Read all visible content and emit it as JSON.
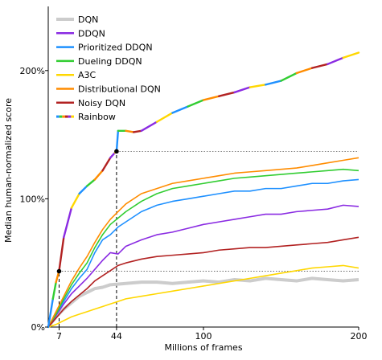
{
  "chart_data": {
    "type": "line",
    "xlabel": "Millions of frames",
    "ylabel": "Median human-normalized score",
    "xlim": [
      0,
      200
    ],
    "ylim": [
      0,
      250
    ],
    "x_ticks": [
      7,
      44,
      100,
      200
    ],
    "y_ticks": [
      {
        "value": 0,
        "label": "0%"
      },
      {
        "value": 100,
        "label": "100%"
      },
      {
        "value": 200,
        "label": "200%"
      }
    ],
    "legend_position": "top-left",
    "reference_lines": [
      {
        "type": "horizontal",
        "y": 137,
        "x_from": 44,
        "x_to": 200,
        "style": "dotted"
      },
      {
        "type": "horizontal",
        "y": 43.5,
        "x_from": 7,
        "x_to": 200,
        "style": "dotted"
      },
      {
        "type": "vertical",
        "x": 7,
        "y_from": 0,
        "y_to": 43.5,
        "style": "dashed"
      },
      {
        "type": "vertical",
        "x": 44,
        "y_from": 0,
        "y_to": 137,
        "style": "dashed"
      }
    ],
    "markers": [
      {
        "x": 7,
        "y": 43.5
      },
      {
        "x": 44,
        "y": 137
      }
    ],
    "series": [
      {
        "name": "DQN",
        "color": "#cccccc",
        "width": 4,
        "x": [
          0,
          5,
          10,
          15,
          20,
          25,
          30,
          35,
          40,
          50,
          60,
          70,
          80,
          90,
          100,
          110,
          120,
          130,
          140,
          150,
          160,
          170,
          180,
          190,
          200
        ],
        "y": [
          0,
          8,
          14,
          19,
          24,
          27,
          30,
          31,
          33,
          34,
          35,
          35,
          34,
          35,
          36,
          35,
          37,
          36,
          38,
          37,
          36,
          38,
          37,
          36,
          37
        ]
      },
      {
        "name": "DDQN",
        "color": "#8a2be2",
        "width": 1.6,
        "x": [
          0,
          5,
          10,
          15,
          20,
          25,
          30,
          35,
          40,
          45,
          50,
          60,
          70,
          80,
          90,
          100,
          110,
          120,
          130,
          140,
          150,
          160,
          170,
          180,
          190,
          200
        ],
        "y": [
          0,
          9,
          18,
          26,
          32,
          38,
          45,
          52,
          58,
          57,
          63,
          68,
          72,
          74,
          77,
          80,
          82,
          84,
          86,
          88,
          88,
          90,
          91,
          92,
          95,
          94
        ]
      },
      {
        "name": "Prioritized DDQN",
        "color": "#1e90ff",
        "width": 1.6,
        "x": [
          0,
          5,
          10,
          15,
          20,
          25,
          30,
          35,
          40,
          45,
          50,
          60,
          70,
          80,
          90,
          100,
          110,
          120,
          130,
          140,
          150,
          160,
          170,
          180,
          190,
          200
        ],
        "y": [
          0,
          10,
          20,
          30,
          38,
          45,
          58,
          68,
          72,
          78,
          82,
          90,
          95,
          98,
          100,
          102,
          104,
          106,
          106,
          108,
          108,
          110,
          112,
          112,
          114,
          115
        ]
      },
      {
        "name": "Dueling DDQN",
        "color": "#32cd32",
        "width": 1.6,
        "x": [
          0,
          5,
          10,
          15,
          20,
          25,
          30,
          35,
          40,
          45,
          50,
          60,
          70,
          80,
          90,
          100,
          110,
          120,
          130,
          140,
          150,
          160,
          170,
          180,
          190,
          200
        ],
        "y": [
          0,
          10,
          22,
          33,
          42,
          50,
          62,
          72,
          80,
          85,
          90,
          98,
          104,
          108,
          110,
          112,
          114,
          116,
          117,
          118,
          119,
          120,
          121,
          122,
          123,
          122
        ]
      },
      {
        "name": "A3C",
        "color": "#ffd700",
        "width": 1.6,
        "x": [
          0,
          5,
          10,
          15,
          20,
          25,
          30,
          35,
          40,
          45,
          50,
          60,
          70,
          80,
          90,
          100,
          110,
          120,
          130,
          140,
          150,
          160,
          170,
          180,
          190,
          200
        ],
        "y": [
          0,
          2,
          5,
          8,
          10,
          12,
          14,
          16,
          18,
          20,
          22,
          24,
          26,
          28,
          30,
          32,
          34,
          36,
          38,
          40,
          42,
          44,
          46,
          47,
          48,
          46
        ]
      },
      {
        "name": "Distributional DQN",
        "color": "#ff8c00",
        "width": 1.6,
        "x": [
          0,
          5,
          10,
          15,
          20,
          25,
          30,
          35,
          40,
          45,
          50,
          60,
          70,
          80,
          90,
          100,
          110,
          120,
          130,
          140,
          150,
          160,
          170,
          180,
          190,
          200
        ],
        "y": [
          0,
          12,
          24,
          36,
          46,
          55,
          66,
          76,
          84,
          90,
          96,
          104,
          108,
          112,
          114,
          116,
          118,
          120,
          121,
          122,
          123,
          124,
          126,
          128,
          130,
          132
        ]
      },
      {
        "name": "Noisy DQN",
        "color": "#b22222",
        "width": 1.6,
        "x": [
          0,
          5,
          10,
          15,
          20,
          25,
          30,
          35,
          40,
          45,
          50,
          60,
          70,
          80,
          90,
          100,
          110,
          120,
          130,
          140,
          150,
          160,
          170,
          180,
          190,
          200
        ],
        "y": [
          0,
          7,
          14,
          20,
          25,
          30,
          36,
          40,
          44,
          48,
          50,
          53,
          55,
          56,
          57,
          58,
          60,
          61,
          62,
          62,
          63,
          64,
          65,
          66,
          68,
          70
        ]
      },
      {
        "name": "Rainbow",
        "color": "#ff0000",
        "width": 2.4,
        "multicolor": [
          "#1e90ff",
          "#32cd32",
          "#ff8c00",
          "#b22222",
          "#8a2be2",
          "#ffd700"
        ],
        "x": [
          0,
          3,
          5,
          7,
          10,
          15,
          20,
          25,
          30,
          35,
          40,
          43,
          44,
          45,
          50,
          55,
          60,
          70,
          80,
          90,
          100,
          110,
          120,
          130,
          140,
          150,
          160,
          170,
          180,
          190,
          200
        ],
        "y": [
          0,
          22,
          35,
          44,
          70,
          93,
          104,
          110,
          115,
          122,
          132,
          136,
          137,
          153,
          153,
          152,
          153,
          160,
          167,
          172,
          177,
          180,
          183,
          187,
          189,
          192,
          198,
          202,
          205,
          210,
          214
        ]
      }
    ]
  }
}
